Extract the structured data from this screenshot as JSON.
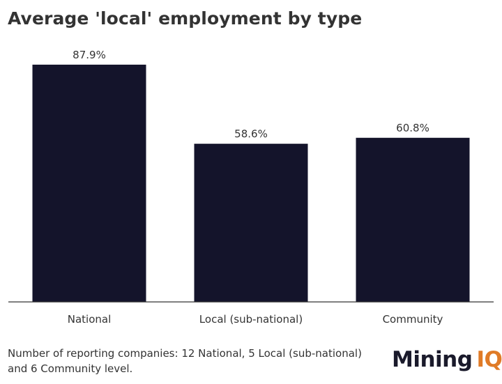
{
  "title": "Average 'local' employment by type",
  "footnote": "Number of reporting companies: 12 National, 5 Local (sub-national) and 6 Community level.",
  "logo": {
    "word1": "Mining",
    "word2": "IQ"
  },
  "colors": {
    "bar": "#14142b",
    "axis": "#333333",
    "text": "#333333",
    "logo_accent": "#e07b27"
  },
  "chart_data": {
    "type": "bar",
    "title": "Average 'local' employment by type",
    "categories": [
      "National",
      "Local (sub-national)",
      "Community"
    ],
    "values": [
      87.9,
      58.6,
      60.8
    ],
    "data_labels": [
      "87.9%",
      "58.6%",
      "60.8%"
    ],
    "xlabel": "",
    "ylabel": "",
    "ylim": [
      0,
      100
    ],
    "grid": false,
    "legend": "none"
  }
}
